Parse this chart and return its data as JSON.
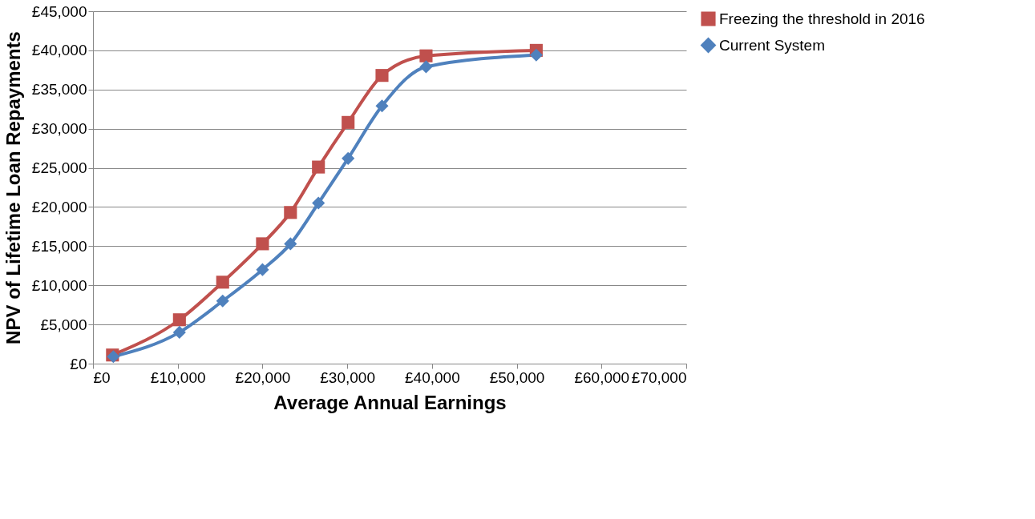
{
  "chart_data": {
    "type": "line",
    "xlabel": "Average Annual Earnings",
    "ylabel": "NPV of Lifetime Loan Repayments",
    "series": [
      {
        "name": "Freezing the threshold in 2016",
        "color": "#c0504d",
        "marker": "square",
        "x": [
          2300,
          10200,
          15300,
          20000,
          23300,
          26600,
          30100,
          34100,
          39300,
          52300
        ],
        "values": [
          1100,
          5600,
          10400,
          15300,
          19300,
          25100,
          30800,
          36800,
          39300,
          40000
        ]
      },
      {
        "name": "Current System",
        "color": "#4f81bd",
        "marker": "diamond",
        "x": [
          2400,
          10200,
          15300,
          20000,
          23300,
          26600,
          30100,
          34100,
          39300,
          52300
        ],
        "values": [
          900,
          4000,
          8000,
          12000,
          15300,
          20500,
          26200,
          32900,
          37900,
          39400
        ]
      }
    ],
    "xlim": [
      0,
      70000
    ],
    "xticks": [
      {
        "value": 0,
        "label": "£0"
      },
      {
        "value": 10000,
        "label": "£10,000"
      },
      {
        "value": 20000,
        "label": "£20,000"
      },
      {
        "value": 30000,
        "label": "£30,000"
      },
      {
        "value": 40000,
        "label": "£40,000"
      },
      {
        "value": 50000,
        "label": "£50,000"
      },
      {
        "value": 60000,
        "label": "£60,000"
      },
      {
        "value": 70000,
        "label": "£70,000"
      }
    ],
    "ylim": [
      0,
      45000
    ],
    "yticks": [
      {
        "value": 0,
        "label": "£0"
      },
      {
        "value": 5000,
        "label": "£5,000"
      },
      {
        "value": 10000,
        "label": "£10,000"
      },
      {
        "value": 15000,
        "label": "£15,000"
      },
      {
        "value": 20000,
        "label": "£20,000"
      },
      {
        "value": 25000,
        "label": "£25,000"
      },
      {
        "value": 30000,
        "label": "£30,000"
      },
      {
        "value": 35000,
        "label": "£35,000"
      },
      {
        "value": 40000,
        "label": "£40,000"
      },
      {
        "value": 45000,
        "label": "£45,000"
      }
    ],
    "grid": "y",
    "legend": "right",
    "line_style": "solid"
  }
}
